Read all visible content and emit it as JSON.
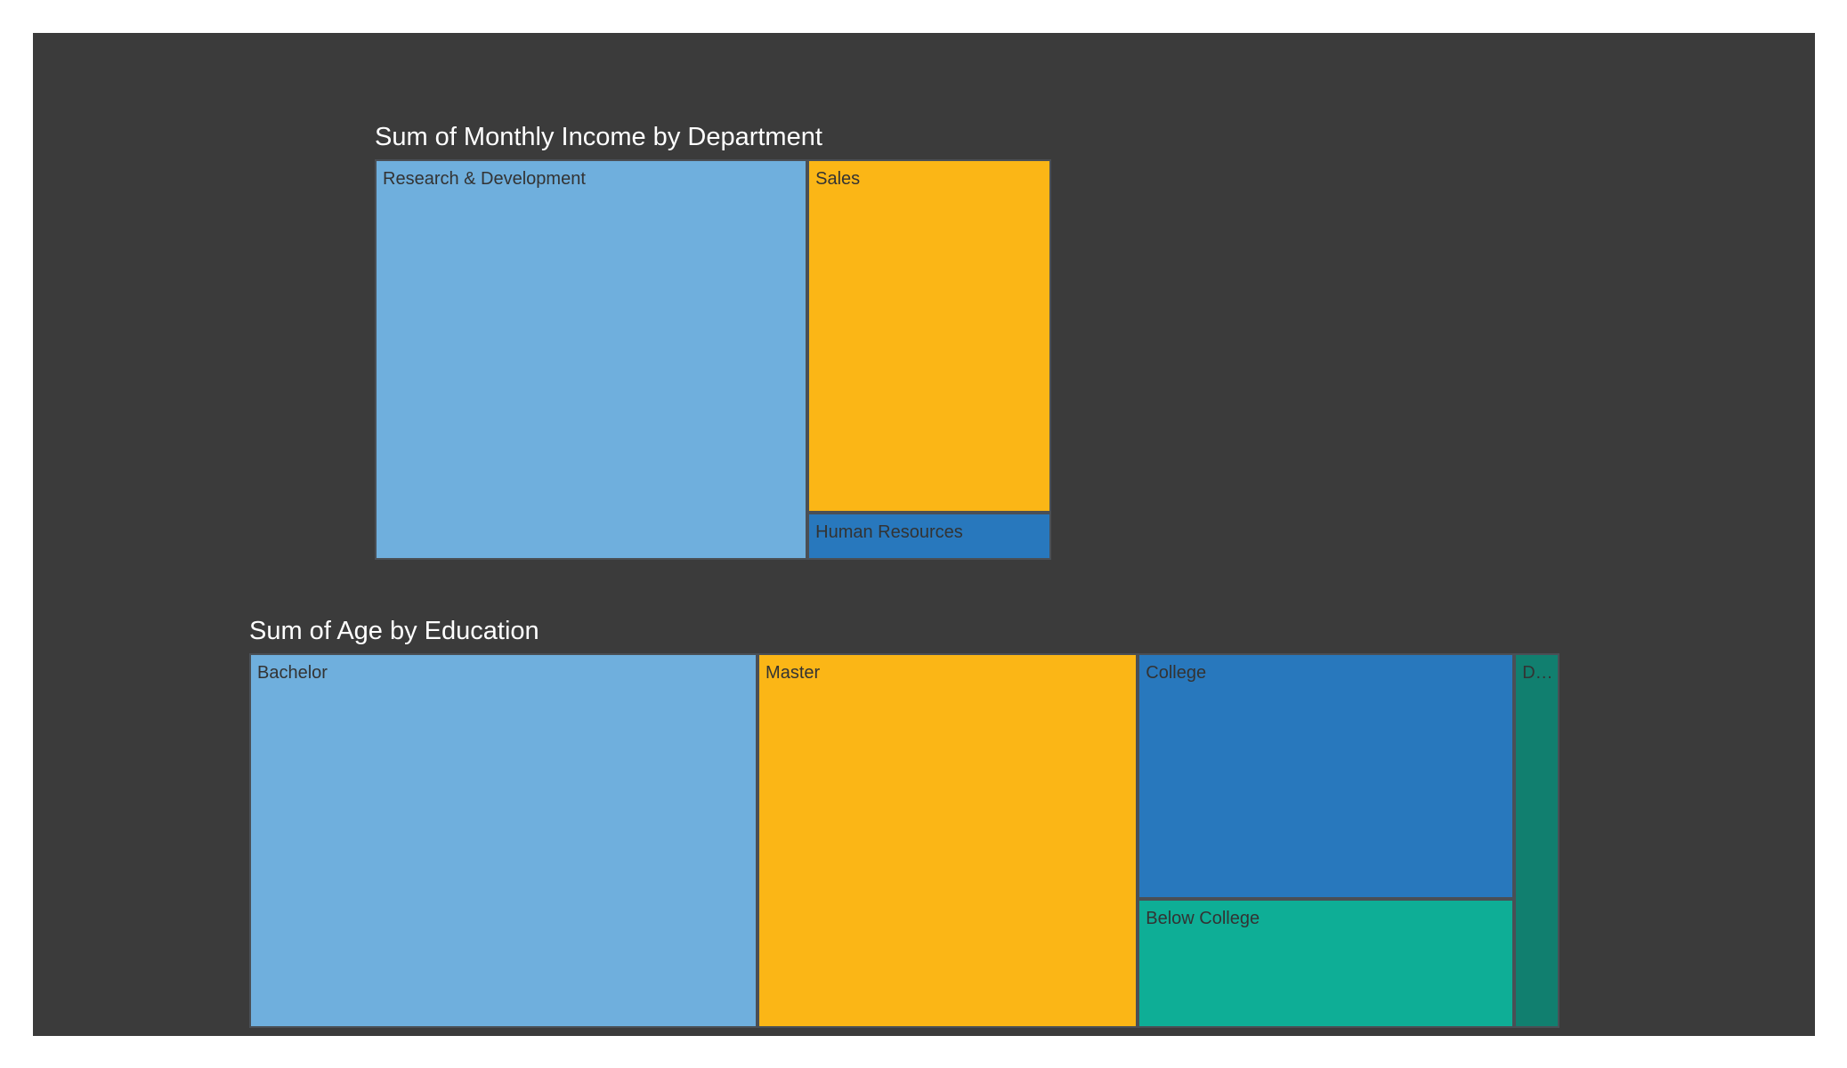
{
  "chart_data": [
    {
      "type": "treemap",
      "title": "Sum of Monthly Income by Department",
      "categories": [
        "Research & Development",
        "Sales",
        "Human Resources"
      ],
      "values": [
        6036,
        3000,
        400
      ],
      "colors": [
        "#6fafdd",
        "#fbb616",
        "#2878bd"
      ]
    },
    {
      "type": "treemap",
      "title": "Sum of Age by Education",
      "categories": [
        "Bachelor",
        "Master",
        "College",
        "Below College",
        "D…"
      ],
      "values": [
        13500,
        10100,
        6550,
        3450,
        1200
      ],
      "colors": [
        "#6fafdd",
        "#fbb616",
        "#2878bd",
        "#0eae96",
        "#117f6f"
      ]
    }
  ]
}
